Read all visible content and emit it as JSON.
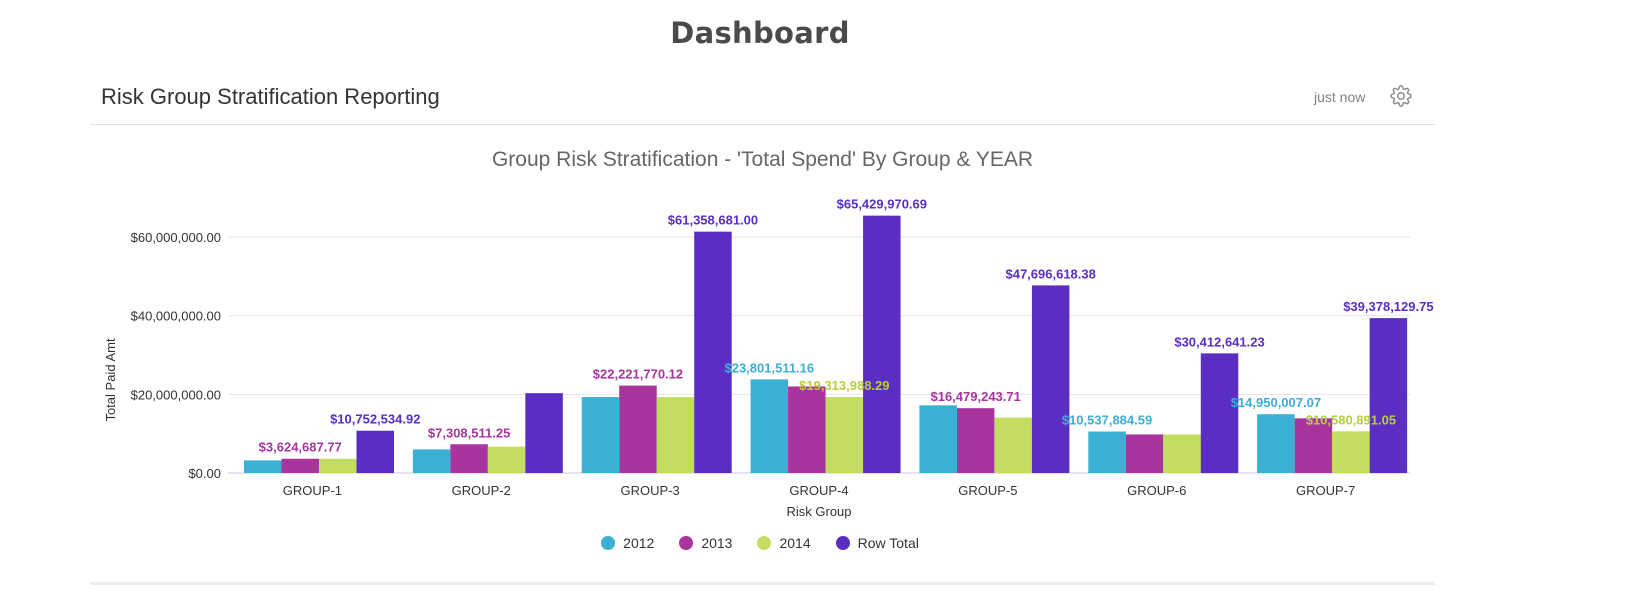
{
  "page": {
    "title": "Dashboard"
  },
  "panel": {
    "title": "Risk Group Stratification Reporting",
    "timestamp": "just now"
  },
  "icons": {
    "settings": "gear-icon"
  },
  "colors": {
    "2012": "#3cafd5",
    "2013": "#a8349e",
    "2014": "#c2dd60",
    "Row Total": "#5b2ec3",
    "label_2014": "#b7cf3a"
  },
  "chart_data": {
    "type": "bar",
    "title": "Group Risk Stratification - 'Total Spend' By Group & YEAR",
    "xlabel": "Risk Group",
    "ylabel": "Total Paid Amt",
    "ylim": [
      0,
      60000000
    ],
    "yticks": [
      0,
      20000000,
      40000000,
      60000000
    ],
    "ytick_labels": [
      "$0.00",
      "$20,000,000.00",
      "$40,000,000.00",
      "$60,000,000.00"
    ],
    "grid": true,
    "legend_position": "bottom",
    "categories": [
      "GROUP-1",
      "GROUP-2",
      "GROUP-3",
      "GROUP-4",
      "GROUP-5",
      "GROUP-6",
      "GROUP-7"
    ],
    "series": [
      {
        "name": "2012",
        "values": [
          3200000,
          6000000,
          19300000,
          23801511.16,
          17200000,
          10537884.59,
          14950007.07
        ],
        "labels": [
          "",
          "",
          "",
          "$23,801,511.16",
          "",
          "$10,537,884.59",
          "$14,950,007.07"
        ]
      },
      {
        "name": "2013",
        "values": [
          3624687.77,
          7308511.25,
          22221770.12,
          22000000,
          16479243.71,
          9800000,
          13900000
        ],
        "labels": [
          "$3,624,687.77",
          "$7,308,511.25",
          "$22,221,770.12",
          "",
          "$16,479,243.71",
          "",
          ""
        ]
      },
      {
        "name": "2014",
        "values": [
          3600000,
          6700000,
          19300000,
          19313988.29,
          14100000,
          9800000,
          10580891.05
        ],
        "labels": [
          "",
          "",
          "",
          "$19,313,988.29",
          "",
          "",
          "$10,580,891.05"
        ]
      },
      {
        "name": "Row Total",
        "values": [
          10752534.92,
          20300000,
          61358681.0,
          65429970.69,
          47696618.38,
          30412641.23,
          39378129.75
        ],
        "labels": [
          "$10,752,534.92",
          "",
          "$61,358,681.00",
          "$65,429,970.69",
          "$47,696,618.38",
          "$30,412,641.23",
          "$39,378,129.75"
        ]
      }
    ]
  }
}
